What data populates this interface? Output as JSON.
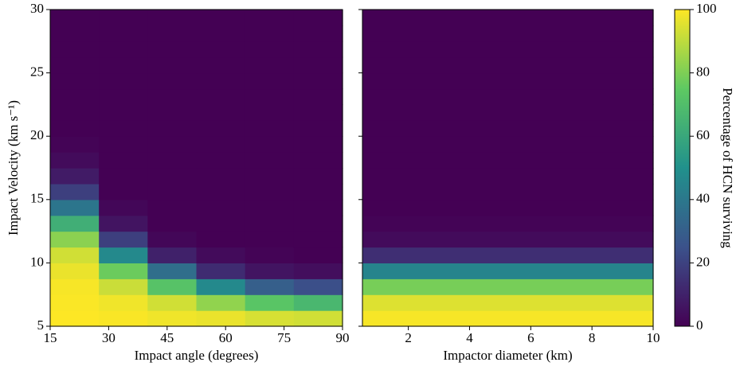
{
  "chart_data": [
    {
      "type": "heatmap",
      "xlabel": "Impact angle (degrees)",
      "ylabel": "Impact Velocity (km s⁻¹)",
      "xlim": [
        15,
        90
      ],
      "ylim": [
        5,
        30
      ],
      "xticks": [
        15,
        30,
        45,
        60,
        75,
        90
      ],
      "yticks": [
        5,
        10,
        15,
        20,
        25,
        30
      ],
      "x_edges": [
        15,
        27.5,
        40,
        52.5,
        65,
        77.5,
        90
      ],
      "y_edges": [
        5,
        6.25,
        7.5,
        8.75,
        10,
        11.25,
        12.5,
        13.75,
        15,
        16.25,
        17.5,
        18.75,
        20,
        21.25,
        22.5,
        23.75,
        25,
        26.25,
        27.5,
        28.75,
        30
      ],
      "values": [
        [
          100,
          99.4,
          98,
          97,
          94,
          93
        ],
        [
          99.6,
          98,
          93,
          83,
          73,
          67
        ],
        [
          99,
          92,
          72,
          47,
          30,
          24
        ],
        [
          97,
          77,
          36,
          13,
          6,
          4
        ],
        [
          93,
          47,
          10,
          3,
          1,
          0
        ],
        [
          82,
          19,
          2,
          0,
          0,
          0
        ],
        [
          63,
          6,
          0,
          0,
          0,
          0
        ],
        [
          39,
          2,
          0,
          0,
          0,
          0
        ],
        [
          19,
          0,
          0,
          0,
          0,
          0
        ],
        [
          8,
          0,
          0,
          0,
          0,
          0
        ],
        [
          3,
          0,
          0,
          0,
          0,
          0
        ],
        [
          1,
          0,
          0,
          0,
          0,
          0
        ],
        [
          0,
          0,
          0,
          0,
          0,
          0
        ],
        [
          0,
          0,
          0,
          0,
          0,
          0
        ],
        [
          0,
          0,
          0,
          0,
          0,
          0
        ],
        [
          0,
          0,
          0,
          0,
          0,
          0
        ],
        [
          0,
          0,
          0,
          0,
          0,
          0
        ],
        [
          0,
          0,
          0,
          0,
          0,
          0
        ],
        [
          0,
          0,
          0,
          0,
          0,
          0
        ],
        [
          0,
          0,
          0,
          0,
          0,
          0
        ]
      ]
    },
    {
      "type": "heatmap",
      "xlabel": "Impactor diameter (km)",
      "xlim": [
        0.5,
        10
      ],
      "ylim": [
        5,
        30
      ],
      "xticks": [
        2,
        4,
        6,
        8,
        10
      ],
      "yticks": [
        5,
        10,
        15,
        20,
        25,
        30
      ],
      "x_edges": [
        0.5,
        10
      ],
      "y_edges": [
        5,
        6.25,
        7.5,
        8.75,
        10,
        11.25,
        12.5,
        13.75,
        15,
        16.25,
        17.5,
        18.75,
        20,
        21.25,
        22.5,
        23.75,
        25,
        26.25,
        27.5,
        28.75,
        30
      ],
      "values": [
        [
          99
        ],
        [
          95
        ],
        [
          79
        ],
        [
          45
        ],
        [
          14
        ],
        [
          3
        ],
        [
          1
        ],
        [
          0
        ],
        [
          0
        ],
        [
          0
        ],
        [
          0
        ],
        [
          0
        ],
        [
          0
        ],
        [
          0
        ],
        [
          0
        ],
        [
          0
        ],
        [
          0
        ],
        [
          0
        ],
        [
          0
        ],
        [
          0
        ]
      ]
    }
  ],
  "colorbar": {
    "label": "Percentage of HCN surviving",
    "lim": [
      0,
      100
    ],
    "ticks": [
      0,
      20,
      40,
      60,
      80,
      100
    ],
    "colormap": "viridis"
  }
}
